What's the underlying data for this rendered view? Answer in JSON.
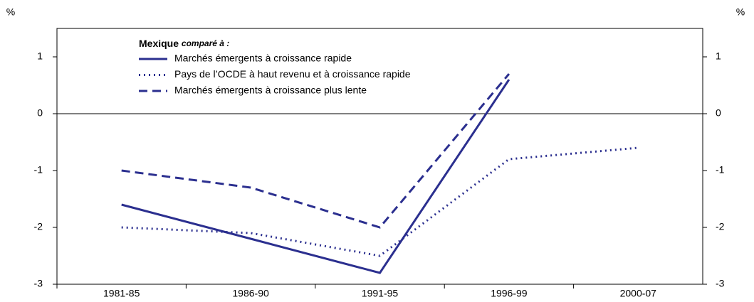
{
  "chart_data": {
    "type": "line",
    "y_unit_left": "%",
    "y_unit_right": "%",
    "legend_title": "Mexique",
    "legend_subtitle": "comparé à :",
    "categories": [
      "1981-85",
      "1986-90",
      "1991-95",
      "1996-99",
      "2000-07"
    ],
    "series": [
      {
        "name": "Marchés émergents à croissance rapide",
        "color": "#2b2f8f",
        "style": "solid",
        "values": [
          -1.6,
          -2.2,
          -2.8,
          0.6,
          null
        ]
      },
      {
        "name": "Pays de l’OCDE à haut revenu et à croissance rapide",
        "color": "#2b2f8f",
        "style": "dotted",
        "values": [
          -2.0,
          -2.1,
          -2.5,
          -0.8,
          -0.6
        ]
      },
      {
        "name": "Marchés émergents à croissance plus lente",
        "color": "#2b2f8f",
        "style": "dashed",
        "values": [
          -1.0,
          -1.3,
          -2.0,
          0.7,
          null
        ]
      }
    ],
    "ylim": [
      -3,
      1.5
    ],
    "yticks": [
      -3,
      -2,
      -1,
      0,
      1
    ],
    "y2lim": [
      -3,
      1.5
    ],
    "y2ticks": [
      -3,
      -2,
      -1,
      0,
      1
    ],
    "zero_line": true,
    "grid": false
  }
}
